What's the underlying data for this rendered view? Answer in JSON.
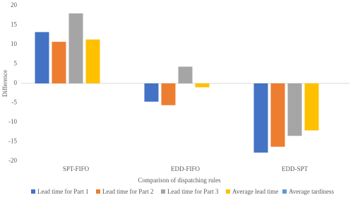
{
  "chart_data": {
    "type": "bar",
    "x_label": "Comparison of dispatching rules",
    "y_label": "Difference",
    "categories": [
      "SPT-FIFO",
      "EDD-FIFO",
      "EDD-SPT"
    ],
    "series": [
      {
        "name": "Lead time for Part 1",
        "color": "#4472c4",
        "values": [
          13.2,
          -4.7,
          -17.8
        ]
      },
      {
        "name": "Lead time for Part 2",
        "color": "#ed7d31",
        "values": [
          10.7,
          -5.6,
          -16.3
        ]
      },
      {
        "name": "Lead time for Part 3",
        "color": "#a5a5a5",
        "values": [
          18,
          4.3,
          -13.5
        ]
      },
      {
        "name": "Average lead time",
        "color": "#ffc000",
        "values": [
          11.3,
          -1,
          -12.1
        ]
      },
      {
        "name": "Average tardiness",
        "color": "#5b9bd5",
        "values": [
          0,
          0,
          0
        ]
      }
    ],
    "ylim": [
      -20,
      20
    ],
    "yticks": [
      -20,
      -15,
      -10,
      -5,
      0,
      5,
      10,
      15,
      20
    ],
    "grid": false,
    "legend": "bottom"
  }
}
